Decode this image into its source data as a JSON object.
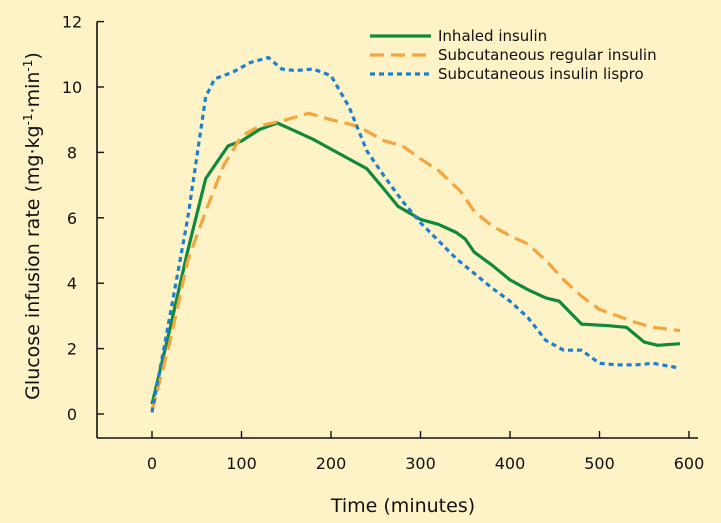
{
  "chart_data": {
    "type": "line",
    "title": "",
    "xlabel": "Time (minutes)",
    "ylabel_main": "Glucose infusion rate (mg·kg",
    "ylabel_sup1": "-1",
    "ylabel_mid": "·min",
    "ylabel_sup2": "-1",
    "ylabel_end": ")",
    "xlim": [
      -60,
      600
    ],
    "ylim": [
      -0.8,
      12
    ],
    "x_ticks": [
      0,
      100,
      200,
      300,
      400,
      500,
      600
    ],
    "y_ticks": [
      0,
      2,
      4,
      6,
      8,
      10,
      12
    ],
    "legend_position": "top-right",
    "grid": false,
    "series": [
      {
        "name": "Inhaled insulin",
        "color": "#0f8a3c",
        "style": "solid",
        "points": [
          [
            0,
            0.3
          ],
          [
            20,
            2.6
          ],
          [
            40,
            5.0
          ],
          [
            60,
            7.2
          ],
          [
            85,
            8.2
          ],
          [
            100,
            8.35
          ],
          [
            120,
            8.7
          ],
          [
            140,
            8.9
          ],
          [
            160,
            8.65
          ],
          [
            180,
            8.4
          ],
          [
            200,
            8.1
          ],
          [
            220,
            7.8
          ],
          [
            240,
            7.5
          ],
          [
            260,
            6.85
          ],
          [
            275,
            6.35
          ],
          [
            300,
            5.95
          ],
          [
            320,
            5.8
          ],
          [
            340,
            5.55
          ],
          [
            350,
            5.35
          ],
          [
            360,
            4.95
          ],
          [
            380,
            4.55
          ],
          [
            400,
            4.1
          ],
          [
            420,
            3.8
          ],
          [
            440,
            3.55
          ],
          [
            455,
            3.45
          ],
          [
            480,
            2.75
          ],
          [
            510,
            2.7
          ],
          [
            530,
            2.65
          ],
          [
            550,
            2.2
          ],
          [
            565,
            2.1
          ],
          [
            590,
            2.15
          ]
        ]
      },
      {
        "name": "Subcutaneous regular insulin",
        "color": "#f4a53c",
        "style": "dashed",
        "points": [
          [
            0,
            0.1
          ],
          [
            20,
            2.2
          ],
          [
            40,
            4.7
          ],
          [
            60,
            6.2
          ],
          [
            80,
            7.6
          ],
          [
            100,
            8.5
          ],
          [
            120,
            8.8
          ],
          [
            150,
            9.0
          ],
          [
            175,
            9.2
          ],
          [
            200,
            9.0
          ],
          [
            230,
            8.8
          ],
          [
            260,
            8.35
          ],
          [
            280,
            8.2
          ],
          [
            300,
            7.8
          ],
          [
            320,
            7.45
          ],
          [
            345,
            6.8
          ],
          [
            360,
            6.2
          ],
          [
            380,
            5.75
          ],
          [
            400,
            5.45
          ],
          [
            420,
            5.2
          ],
          [
            440,
            4.7
          ],
          [
            460,
            4.1
          ],
          [
            480,
            3.6
          ],
          [
            500,
            3.2
          ],
          [
            520,
            3.0
          ],
          [
            540,
            2.8
          ],
          [
            560,
            2.65
          ],
          [
            590,
            2.55
          ]
        ]
      },
      {
        "name": "Subcutaneous insulin lispro",
        "color": "#1d7fd0",
        "style": "dotted",
        "points": [
          [
            0,
            0.05
          ],
          [
            20,
            3.0
          ],
          [
            40,
            6.0
          ],
          [
            60,
            9.7
          ],
          [
            70,
            10.25
          ],
          [
            90,
            10.45
          ],
          [
            110,
            10.75
          ],
          [
            130,
            10.9
          ],
          [
            145,
            10.55
          ],
          [
            160,
            10.5
          ],
          [
            180,
            10.55
          ],
          [
            200,
            10.35
          ],
          [
            220,
            9.4
          ],
          [
            240,
            8.05
          ],
          [
            260,
            7.25
          ],
          [
            280,
            6.5
          ],
          [
            300,
            5.85
          ],
          [
            320,
            5.3
          ],
          [
            340,
            4.75
          ],
          [
            360,
            4.3
          ],
          [
            380,
            3.85
          ],
          [
            400,
            3.45
          ],
          [
            420,
            2.95
          ],
          [
            440,
            2.25
          ],
          [
            460,
            1.95
          ],
          [
            480,
            1.95
          ],
          [
            500,
            1.55
          ],
          [
            520,
            1.5
          ],
          [
            540,
            1.5
          ],
          [
            560,
            1.55
          ],
          [
            590,
            1.4
          ]
        ]
      }
    ]
  }
}
